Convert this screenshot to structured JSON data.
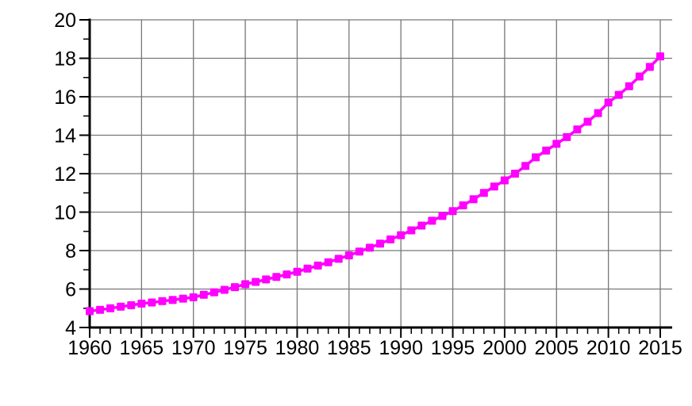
{
  "chart_data": {
    "type": "line",
    "title": "",
    "xlabel": "",
    "ylabel": "",
    "legend_position": "none",
    "grid": true,
    "background_color": "#ffffff",
    "grid_color": "#777777",
    "axis_color": "#000000",
    "text_color": "#000000",
    "xlim": [
      1960,
      2016.2
    ],
    "ylim": [
      4,
      20
    ],
    "x_major_ticks": [
      1960,
      1965,
      1970,
      1975,
      1980,
      1985,
      1990,
      1995,
      2000,
      2005,
      2010,
      2015
    ],
    "x_tick_labels": [
      "1960",
      "1965",
      "1970",
      "1975",
      "1980",
      "1985",
      "1990",
      "1995",
      "2000",
      "2005",
      "2010",
      "2015"
    ],
    "x_minor_tick_step": 1,
    "y_major_ticks": [
      4,
      6,
      8,
      10,
      12,
      14,
      16,
      18,
      20
    ],
    "y_tick_labels": [
      "4",
      "6",
      "8",
      "10",
      "12",
      "14",
      "16",
      "18",
      "20"
    ],
    "y_minor_tick_step": 1,
    "x": [
      1960,
      1961,
      1962,
      1963,
      1964,
      1965,
      1966,
      1967,
      1968,
      1969,
      1970,
      1971,
      1972,
      1973,
      1974,
      1975,
      1976,
      1977,
      1978,
      1979,
      1980,
      1981,
      1982,
      1983,
      1984,
      1985,
      1986,
      1987,
      1988,
      1989,
      1990,
      1991,
      1992,
      1993,
      1994,
      1995,
      1996,
      1997,
      1998,
      1999,
      2000,
      2001,
      2002,
      2003,
      2004,
      2005,
      2006,
      2007,
      2008,
      2009,
      2010,
      2011,
      2012,
      2013,
      2014,
      2015
    ],
    "series": [
      {
        "name": "magenta-square-series",
        "color": "#ff00ff",
        "marker": "filled-square",
        "marker_size": 10,
        "line_width": 3.5,
        "values": [
          4.85,
          4.92,
          5.0,
          5.08,
          5.16,
          5.24,
          5.3,
          5.37,
          5.43,
          5.5,
          5.57,
          5.7,
          5.83,
          5.96,
          6.1,
          6.25,
          6.37,
          6.5,
          6.63,
          6.76,
          6.9,
          7.06,
          7.22,
          7.39,
          7.57,
          7.75,
          7.95,
          8.15,
          8.36,
          8.58,
          8.8,
          9.05,
          9.3,
          9.55,
          9.8,
          10.05,
          10.35,
          10.67,
          11.0,
          11.33,
          11.65,
          12.0,
          12.4,
          12.85,
          13.2,
          13.55,
          13.9,
          14.3,
          14.7,
          15.15,
          15.7,
          16.1,
          16.55,
          17.05,
          17.55,
          18.1
        ]
      }
    ]
  }
}
